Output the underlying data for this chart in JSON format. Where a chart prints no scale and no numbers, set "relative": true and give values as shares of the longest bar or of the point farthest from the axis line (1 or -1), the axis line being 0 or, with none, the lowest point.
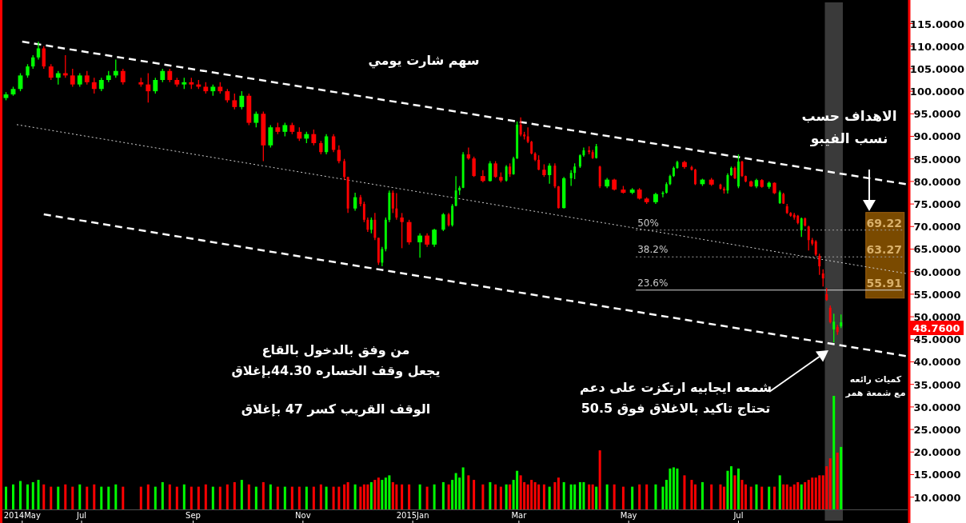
{
  "chart_data": [
    {
      "type": "candlestick",
      "title": "سهم شارت يومي",
      "x": [
        "2014-05-20",
        "2014-05-24",
        "2014-05-28",
        "2014-06-01",
        "2014-06-04",
        "2014-06-07",
        "2014-06-10",
        "2014-06-14",
        "2014-06-18",
        "2014-06-22",
        "2014-06-26",
        "2014-06-30",
        "2014-07-04",
        "2014-07-08",
        "2014-07-12",
        "2014-07-16",
        "2014-07-20",
        "2014-07-24",
        "2014-08-03",
        "2014-08-07",
        "2014-08-11",
        "2014-08-15",
        "2014-08-19",
        "2014-08-23",
        "2014-08-27",
        "2014-08-31",
        "2014-09-04",
        "2014-09-08",
        "2014-09-12",
        "2014-09-16",
        "2014-09-20",
        "2014-09-24",
        "2014-09-28",
        "2014-10-02",
        "2014-10-06",
        "2014-10-10",
        "2014-10-14",
        "2014-10-18",
        "2014-10-22",
        "2014-10-26",
        "2014-10-30",
        "2014-11-03",
        "2014-11-07",
        "2014-11-11",
        "2014-11-14",
        "2014-11-18",
        "2014-11-21",
        "2014-11-24",
        "2014-11-26",
        "2014-11-30",
        "2014-12-03",
        "2014-12-05",
        "2014-12-07",
        "2014-12-09",
        "2014-12-11",
        "2014-12-13",
        "2014-12-15",
        "2014-12-17",
        "2014-12-19",
        "2014-12-21",
        "2014-12-23",
        "2014-12-26",
        "2014-12-30",
        "2015-01-05",
        "2015-01-09",
        "2015-01-13",
        "2015-01-18",
        "2015-01-21",
        "2015-01-23",
        "2015-01-25",
        "2015-01-27",
        "2015-01-29",
        "2015-02-01",
        "2015-02-04",
        "2015-02-09",
        "2015-02-13",
        "2015-02-16",
        "2015-02-19",
        "2015-02-22",
        "2015-02-24",
        "2015-02-26",
        "2015-02-28",
        "2015-03-02",
        "2015-03-04",
        "2015-03-06",
        "2015-03-08",
        "2015-03-10",
        "2015-03-12",
        "2015-03-15",
        "2015-03-18",
        "2015-03-21",
        "2015-03-23",
        "2015-03-26",
        "2015-03-30",
        "2015-04-01",
        "2015-04-04",
        "2015-04-06",
        "2015-04-09",
        "2015-04-11",
        "2015-04-13",
        "2015-04-15",
        "2015-04-19",
        "2015-04-23",
        "2015-04-28",
        "2015-05-03",
        "2015-05-07",
        "2015-05-11",
        "2015-05-16",
        "2015-05-20",
        "2015-05-22",
        "2015-05-24",
        "2015-05-26",
        "2015-05-28",
        "2015-06-01",
        "2015-06-05",
        "2015-06-07",
        "2015-06-11",
        "2015-06-16",
        "2015-06-21",
        "2015-06-23",
        "2015-06-25",
        "2015-06-27",
        "2015-06-29",
        "2015-07-01",
        "2015-07-03",
        "2015-07-05",
        "2015-07-08",
        "2015-07-11",
        "2015-07-14",
        "2015-07-18",
        "2015-07-21",
        "2015-07-24",
        "2015-07-26",
        "2015-07-28",
        "2015-07-30",
        "2015-08-01",
        "2015-08-03",
        "2015-08-05",
        "2015-08-07",
        "2015-08-09",
        "2015-08-11",
        "2015-08-13",
        "2015-08-15",
        "2015-08-17",
        "2015-08-19",
        "2015-08-21",
        "2015-08-23",
        "2015-08-25",
        "2015-08-27"
      ],
      "ohlc": [
        [
          98.5,
          99.8,
          98,
          99.3
        ],
        [
          99.3,
          101,
          99,
          100.5
        ],
        [
          100.5,
          104,
          100,
          103.5
        ],
        [
          103.5,
          106,
          103,
          105.5
        ],
        [
          105.5,
          108,
          105,
          107.5
        ],
        [
          107.5,
          111,
          107,
          109.5
        ],
        [
          109.5,
          110,
          105,
          105.5
        ],
        [
          105.5,
          106,
          102.5,
          103
        ],
        [
          103,
          104.5,
          101.5,
          104
        ],
        [
          104,
          108,
          103,
          103.5
        ],
        [
          103.5,
          105,
          101,
          101.5
        ],
        [
          101.5,
          104,
          101,
          103.5
        ],
        [
          103.5,
          104.5,
          101.5,
          102
        ],
        [
          102,
          103,
          99.5,
          100.5
        ],
        [
          100.5,
          103,
          100,
          102.5
        ],
        [
          102.5,
          104.5,
          102,
          103.5
        ],
        [
          103.5,
          107,
          103,
          104.5
        ],
        [
          104.5,
          105,
          101.5,
          102
        ],
        [
          102,
          103,
          101,
          101.5
        ],
        [
          101.5,
          104,
          97.5,
          100
        ],
        [
          100,
          103,
          99.5,
          102.5
        ],
        [
          102.5,
          105,
          102,
          104.5
        ],
        [
          104.5,
          105,
          102,
          102.5
        ],
        [
          102.5,
          103,
          101,
          101.5
        ],
        [
          101.5,
          103,
          100.5,
          102
        ],
        [
          102,
          103,
          100.5,
          101.5
        ],
        [
          101.5,
          102.5,
          100.5,
          101
        ],
        [
          101,
          102,
          99.5,
          100
        ],
        [
          100,
          101.5,
          99,
          101
        ],
        [
          101,
          102,
          99.5,
          100
        ],
        [
          100,
          100.5,
          97.5,
          98
        ],
        [
          98,
          99.5,
          96,
          96.5
        ],
        [
          96.5,
          100,
          96,
          99
        ],
        [
          99,
          99.5,
          92.5,
          93
        ],
        [
          93,
          95.5,
          92,
          95
        ],
        [
          95,
          95.5,
          84.5,
          88
        ],
        [
          88,
          92.5,
          87.5,
          92
        ],
        [
          92,
          93,
          90.5,
          91
        ],
        [
          91,
          93,
          90,
          92.5
        ],
        [
          92.5,
          93,
          90.5,
          91
        ],
        [
          91,
          92,
          89,
          89.5
        ],
        [
          89.5,
          91,
          88.5,
          90.5
        ],
        [
          90.5,
          91.5,
          88,
          88.5
        ],
        [
          88.5,
          89,
          86,
          86.5
        ],
        [
          86.5,
          90.5,
          86,
          90
        ],
        [
          90,
          90.5,
          86.5,
          87
        ],
        [
          87,
          88,
          84,
          84.5
        ],
        [
          84.5,
          85,
          80.3,
          81
        ],
        [
          81,
          81,
          73,
          74
        ],
        [
          74,
          77.5,
          73.5,
          76.5
        ],
        [
          76.5,
          77,
          74.5,
          75
        ],
        [
          75,
          75.5,
          71,
          71.5
        ],
        [
          71.5,
          72,
          68.8,
          69.3
        ],
        [
          69.3,
          72,
          68.5,
          71.5
        ],
        [
          71.5,
          73,
          67,
          67.5
        ],
        [
          67.5,
          67.5,
          61.5,
          62
        ],
        [
          62,
          65.5,
          61.2,
          65
        ],
        [
          65,
          72,
          64.5,
          71.5
        ],
        [
          71.5,
          78,
          71,
          77.5
        ],
        [
          77.5,
          78,
          73,
          74
        ],
        [
          74,
          77.4,
          71.5,
          72
        ],
        [
          72,
          73,
          65.2,
          71
        ],
        [
          71,
          71.5,
          66,
          66.5
        ],
        [
          66.5,
          68.5,
          63.1,
          68
        ],
        [
          68,
          68.5,
          65.5,
          66
        ],
        [
          66,
          69.5,
          65.5,
          69.3
        ],
        [
          69.3,
          73,
          69,
          72.7
        ],
        [
          72.7,
          73,
          70,
          70.3
        ],
        [
          70.3,
          75,
          70,
          74.6
        ],
        [
          74.6,
          81.2,
          74.5,
          78
        ],
        [
          78,
          79,
          77,
          78.6
        ],
        [
          78.6,
          86.5,
          78.5,
          86
        ],
        [
          86,
          87.5,
          84.8,
          85.1
        ],
        [
          85.1,
          85.5,
          81,
          81.2
        ],
        [
          81.2,
          82.5,
          79.8,
          80.1
        ],
        [
          80.1,
          84.5,
          80,
          84
        ],
        [
          84,
          84.5,
          80.8,
          81
        ],
        [
          81,
          82,
          79.8,
          80.2
        ],
        [
          80.2,
          83.6,
          80,
          83.3
        ],
        [
          83.3,
          84,
          81,
          81.6
        ],
        [
          81.6,
          85.5,
          81.5,
          85.1
        ],
        [
          85.1,
          93.3,
          85,
          92.6
        ],
        [
          92.6,
          94.2,
          90,
          90.4
        ],
        [
          90.4,
          91,
          89.3,
          90
        ],
        [
          90,
          92,
          88.5,
          88.8
        ],
        [
          88.8,
          89,
          86,
          86.2
        ],
        [
          86.2,
          86.5,
          84.5,
          84.8
        ],
        [
          84.8,
          85.8,
          82.5,
          82.6
        ],
        [
          82.6,
          83.8,
          81,
          81.4
        ],
        [
          81.4,
          84,
          79.5,
          83.5
        ],
        [
          83.5,
          84,
          78.5,
          78.9
        ],
        [
          78.9,
          79,
          74,
          74.1
        ],
        [
          74.1,
          81,
          74,
          80.7
        ],
        [
          80.7,
          82.5,
          79,
          81.9
        ],
        [
          81.9,
          84,
          80.5,
          83.3
        ],
        [
          83.3,
          86,
          83,
          85.8
        ],
        [
          85.8,
          87.5,
          85.5,
          86.9
        ],
        [
          86.9,
          87.8,
          86,
          86.5
        ],
        [
          86.5,
          87,
          85,
          85.2
        ],
        [
          85.2,
          88.3,
          85.1,
          87.8
        ],
        [
          83.3,
          83.5,
          78.5,
          78.9
        ],
        [
          78.9,
          80.8,
          78.5,
          80.4
        ],
        [
          80.4,
          80.6,
          78,
          78.2
        ],
        [
          78.2,
          79,
          77.3,
          77.5
        ],
        [
          77.5,
          78.5,
          77.2,
          78.2
        ],
        [
          78.2,
          78.5,
          76,
          76.2
        ],
        [
          76.2,
          76.5,
          75,
          75.4
        ],
        [
          75.4,
          77.5,
          75,
          77.2
        ],
        [
          77.2,
          77.8,
          76.5,
          77.5
        ],
        [
          77.5,
          79.8,
          77.3,
          79.4
        ],
        [
          79.4,
          81.5,
          79.2,
          81.2
        ],
        [
          81.2,
          83.3,
          81,
          83
        ],
        [
          83,
          84.6,
          82.8,
          84.3
        ],
        [
          84.3,
          84.6,
          82.8,
          83.2
        ],
        [
          83.2,
          83.5,
          82.4,
          82.6
        ],
        [
          82.6,
          82.8,
          79.2,
          79.4
        ],
        [
          79.4,
          80.6,
          79,
          80.4
        ],
        [
          80.4,
          80.8,
          79,
          79.3
        ],
        [
          79.3,
          79.5,
          78.2,
          78.4
        ],
        [
          78.4,
          78.8,
          77.3,
          78
        ],
        [
          78,
          81.8,
          77.3,
          81.4
        ],
        [
          81.4,
          83.3,
          81.2,
          83
        ],
        [
          83,
          83.3,
          80.5,
          80.7
        ],
        [
          78.9,
          86,
          78.5,
          84.4
        ],
        [
          84.4,
          84.6,
          81,
          81.2
        ],
        [
          81.2,
          81.3,
          79.8,
          80
        ],
        [
          80,
          80.2,
          78.8,
          78.9
        ],
        [
          78.9,
          80.6,
          78.5,
          80.3
        ],
        [
          80.3,
          80.5,
          78.6,
          78.8
        ],
        [
          78.8,
          80,
          78.4,
          79.7
        ],
        [
          79.7,
          79.8,
          77.2,
          77.4
        ],
        [
          75.2,
          78,
          75,
          77.6
        ],
        [
          77.2,
          77.5,
          75,
          75.1
        ],
        [
          74.5,
          75,
          72.8,
          73
        ],
        [
          73,
          73.2,
          72.2,
          72.4
        ],
        [
          72.6,
          73,
          71.5,
          72
        ],
        [
          72.4,
          72.6,
          70.5,
          70.8
        ],
        [
          69.2,
          72,
          67.7,
          71.8
        ],
        [
          71.8,
          72,
          70,
          70.2
        ],
        [
          70,
          70.2,
          64.7,
          67
        ],
        [
          67,
          67.5,
          65.8,
          66.2
        ],
        [
          66.7,
          67,
          63.5,
          63.8
        ],
        [
          63.5,
          64,
          59.3,
          61.2
        ],
        [
          59.6,
          60.5,
          56.7,
          58.5
        ],
        [
          55,
          56.4,
          53.5,
          53.7
        ],
        [
          52,
          52.5,
          48.5,
          48.8
        ],
        [
          47.2,
          50.7,
          44.3,
          48.9
        ],
        [
          47.7,
          48.2,
          46,
          46.6
        ],
        [
          47.9,
          50.5,
          47.5,
          48.76
        ]
      ],
      "colors": [
        "#00ff00",
        "#00ff00",
        "#00ff00",
        "#00ff00",
        "#00ff00",
        "#00ff00",
        "#ff0000",
        "#ff0000",
        "#00ff00",
        "#ff0000",
        "#ff0000",
        "#00ff00",
        "#ff0000",
        "#ff0000",
        "#00ff00",
        "#00ff00",
        "#00ff00",
        "#ff0000",
        "#ff0000",
        "#ff0000",
        "#00ff00",
        "#00ff00",
        "#ff0000",
        "#ff0000",
        "#00ff00",
        "#ff0000",
        "#ff0000",
        "#ff0000",
        "#00ff00",
        "#ff0000",
        "#ff0000",
        "#ff0000",
        "#00ff00",
        "#ff0000",
        "#00ff00",
        "#ff0000",
        "#00ff00",
        "#ff0000",
        "#00ff00",
        "#ff0000",
        "#ff0000",
        "#00ff00",
        "#ff0000",
        "#ff0000",
        "#00ff00",
        "#ff0000",
        "#ff0000",
        "#ff0000",
        "#ff0000",
        "#00ff00",
        "#ff0000",
        "#ff0000",
        "#ff0000",
        "#00ff00",
        "#ff0000",
        "#ff0000",
        "#00ff00",
        "#00ff00",
        "#00ff00",
        "#ff0000",
        "#ff0000",
        "#ff0000",
        "#ff0000",
        "#00ff00",
        "#ff0000",
        "#00ff00",
        "#00ff00",
        "#ff0000",
        "#00ff00",
        "#00ff00",
        "#00ff00",
        "#00ff00",
        "#ff0000",
        "#ff0000",
        "#ff0000",
        "#00ff00",
        "#ff0000",
        "#ff0000",
        "#00ff00",
        "#ff0000",
        "#00ff00",
        "#00ff00",
        "#ff0000",
        "#ff0000",
        "#ff0000",
        "#ff0000",
        "#ff0000",
        "#ff0000",
        "#ff0000",
        "#00ff00",
        "#ff0000",
        "#ff0000",
        "#00ff00",
        "#00ff00",
        "#00ff00",
        "#00ff00",
        "#00ff00",
        "#ff0000",
        "#ff0000",
        "#00ff00",
        "#ff0000",
        "#00ff00",
        "#ff0000",
        "#ff0000",
        "#00ff00",
        "#ff0000",
        "#ff0000",
        "#00ff00",
        "#00ff00",
        "#00ff00",
        "#00ff00",
        "#00ff00",
        "#00ff00",
        "#ff0000",
        "#ff0000",
        "#ff0000",
        "#00ff00",
        "#ff0000",
        "#ff0000",
        "#ff0000",
        "#00ff00",
        "#00ff00",
        "#ff0000",
        "#00ff00",
        "#ff0000",
        "#ff0000",
        "#ff0000",
        "#00ff00",
        "#ff0000",
        "#00ff00",
        "#ff0000",
        "#00ff00",
        "#ff0000",
        "#ff0000",
        "#ff0000",
        "#ff0000",
        "#ff0000",
        "#00ff00",
        "#ff0000",
        "#ff0000",
        "#ff0000",
        "#ff0000",
        "#ff0000",
        "#ff0000",
        "#ff0000",
        "#ff0000",
        "#00ff00",
        "#ff0000",
        "#00ff00"
      ],
      "series": [
        {
          "type": "line",
          "color": "#ffffff",
          "line_style": "dashed",
          "x": [
            "2014-05-29",
            "2015-10-02"
          ],
          "values": [
            111,
            79.4
          ]
        },
        {
          "type": "line",
          "color": "#d0d0d0",
          "line_style": "dotted",
          "x": [
            "2014-05-26",
            "2015-10-02"
          ],
          "values": [
            92.6,
            59.6
          ]
        },
        {
          "type": "line",
          "color": "#ffffff",
          "line_style": "dashed",
          "x": [
            "2014-06-10",
            "2015-10-02"
          ],
          "values": [
            72.7,
            41.3
          ]
        },
        {
          "type": "line",
          "name": "50%",
          "color": "#a0a0a0",
          "line_style": "dotted",
          "x": [
            "2015-05-05",
            "2015-09-30"
          ],
          "values": [
            69.22,
            69.22
          ]
        },
        {
          "type": "line",
          "name": "38.2%",
          "color": "#a0a0a0",
          "line_style": "dotted",
          "x": [
            "2015-05-05",
            "2015-09-30"
          ],
          "values": [
            63.27,
            63.27
          ]
        },
        {
          "type": "line",
          "name": "23.6%",
          "color": "#d8d8d8",
          "line_style": "solid",
          "x": [
            "2015-05-05",
            "2015-09-30"
          ],
          "values": [
            55.91,
            55.91
          ]
        }
      ],
      "bands": [
        {
          "axis": "x",
          "from": "2015-08-18",
          "to": "2015-08-28",
          "color": "#808080"
        }
      ],
      "annotations": [
        "الاهداف حسب\nنسب الفيبو",
        "من وفق بالدخول بالقاع\nيجعل وقف الخساره 44.30بإغلاق",
        "الوقف القريب كسر 47 بإغلاق",
        "شمعه ايجابيه ارتكزت على دعم\nتحتاج تاكيد بالاغلاق فوق 50.5",
        "كميات رائعه\nمع شمعة همر",
        {
          "text": "69.22",
          "x": "2015-09-20",
          "y": 69.22
        },
        {
          "text": "63.27",
          "x": "2015-09-20",
          "y": 63.27
        },
        {
          "text": "55.91",
          "x": "2015-09-20",
          "y": 55.91
        },
        "48.7600"
      ],
      "xlim": [
        "2014-05-18",
        "2015-10-03"
      ],
      "xticks": [
        {
          "value": "2014-05-29",
          "label": "2014May"
        },
        {
          "value": "2014-07-01",
          "label": "Jul"
        },
        {
          "value": "2014-09-01",
          "label": "Sep"
        },
        {
          "value": "2014-11-01",
          "label": "Nov"
        },
        {
          "value": "2015-01-01",
          "label": "2015Jan"
        },
        {
          "value": "2015-03-01",
          "label": "Mar"
        },
        {
          "value": "2015-05-01",
          "label": "May"
        },
        {
          "value": "2015-07-01",
          "label": "Jul"
        }
      ],
      "ylim": [
        4.8,
        119.7
      ],
      "yticks": [
        {
          "value": 10,
          "label": "10.0000"
        },
        {
          "value": 15,
          "label": "15.0000"
        },
        {
          "value": 20,
          "label": "20.0000"
        },
        {
          "value": 25,
          "label": "25.0000"
        },
        {
          "value": 30,
          "label": "30.0000"
        },
        {
          "value": 35,
          "label": "35.0000"
        },
        {
          "value": 40,
          "label": "40.0000"
        },
        {
          "value": 45,
          "label": "45.0000"
        },
        {
          "value": 50,
          "label": "50.0000"
        },
        {
          "value": 55,
          "label": "55.0000"
        },
        {
          "value": 60,
          "label": "60.0000"
        },
        {
          "value": 65,
          "label": "65.0000"
        },
        {
          "value": 70,
          "label": "70.0000"
        },
        {
          "value": 75,
          "label": "75.0000"
        },
        {
          "value": 80,
          "label": "80.0000"
        },
        {
          "value": 85,
          "label": "85.0000"
        },
        {
          "value": 90,
          "label": "90.0000"
        },
        {
          "value": 95,
          "label": "95.0000"
        },
        {
          "value": 100,
          "label": "100.0000"
        },
        {
          "value": 105,
          "label": "105.0000"
        },
        {
          "value": 110,
          "label": "110.0000"
        },
        {
          "value": 115,
          "label": "115.0000"
        }
      ]
    },
    {
      "type": "bar",
      "relative": true,
      "xlim": [
        "2014-05-18",
        "2015-10-03"
      ],
      "x": [
        "2014-05-20",
        "2014-05-24",
        "2014-05-28",
        "2014-06-01",
        "2014-06-04",
        "2014-06-07",
        "2014-06-10",
        "2014-06-14",
        "2014-06-18",
        "2014-06-22",
        "2014-06-26",
        "2014-06-30",
        "2014-07-04",
        "2014-07-08",
        "2014-07-12",
        "2014-07-16",
        "2014-07-20",
        "2014-07-24",
        "2014-08-03",
        "2014-08-07",
        "2014-08-11",
        "2014-08-15",
        "2014-08-19",
        "2014-08-23",
        "2014-08-27",
        "2014-08-31",
        "2014-09-04",
        "2014-09-08",
        "2014-09-12",
        "2014-09-16",
        "2014-09-20",
        "2014-09-24",
        "2014-09-28",
        "2014-10-02",
        "2014-10-06",
        "2014-10-10",
        "2014-10-14",
        "2014-10-18",
        "2014-10-22",
        "2014-10-26",
        "2014-10-30",
        "2014-11-03",
        "2014-11-07",
        "2014-11-11",
        "2014-11-14",
        "2014-11-18",
        "2014-11-21",
        "2014-11-24",
        "2014-11-26",
        "2014-11-30",
        "2014-12-03",
        "2014-12-05",
        "2014-12-07",
        "2014-12-09",
        "2014-12-11",
        "2014-12-13",
        "2014-12-15",
        "2014-12-17",
        "2014-12-19",
        "2014-12-21",
        "2014-12-23",
        "2014-12-26",
        "2014-12-30",
        "2015-01-05",
        "2015-01-09",
        "2015-01-13",
        "2015-01-18",
        "2015-01-21",
        "2015-01-23",
        "2015-01-25",
        "2015-01-27",
        "2015-01-29",
        "2015-02-01",
        "2015-02-04",
        "2015-02-09",
        "2015-02-13",
        "2015-02-16",
        "2015-02-19",
        "2015-02-22",
        "2015-02-24",
        "2015-02-26",
        "2015-02-28",
        "2015-03-02",
        "2015-03-04",
        "2015-03-06",
        "2015-03-08",
        "2015-03-10",
        "2015-03-12",
        "2015-03-15",
        "2015-03-18",
        "2015-03-21",
        "2015-03-23",
        "2015-03-26",
        "2015-03-30",
        "2015-04-01",
        "2015-04-04",
        "2015-04-06",
        "2015-04-09",
        "2015-04-11",
        "2015-04-13",
        "2015-04-15",
        "2015-04-19",
        "2015-04-23",
        "2015-04-28",
        "2015-05-03",
        "2015-05-07",
        "2015-05-11",
        "2015-05-16",
        "2015-05-20",
        "2015-05-22",
        "2015-05-24",
        "2015-05-26",
        "2015-05-28",
        "2015-06-01",
        "2015-06-05",
        "2015-06-07",
        "2015-06-11",
        "2015-06-16",
        "2015-06-21",
        "2015-06-23",
        "2015-06-25",
        "2015-06-27",
        "2015-06-29",
        "2015-07-01",
        "2015-07-03",
        "2015-07-05",
        "2015-07-08",
        "2015-07-11",
        "2015-07-14",
        "2015-07-18",
        "2015-07-21",
        "2015-07-24",
        "2015-07-26",
        "2015-07-28",
        "2015-07-30",
        "2015-08-01",
        "2015-08-03",
        "2015-08-05",
        "2015-08-07",
        "2015-08-09",
        "2015-08-11",
        "2015-08-13",
        "2015-08-15",
        "2015-08-17",
        "2015-08-19",
        "2015-08-21",
        "2015-08-23",
        "2015-08-25",
        "2015-08-27"
      ],
      "values": [
        0.2,
        0.22,
        0.25,
        0.22,
        0.24,
        0.26,
        0.22,
        0.2,
        0.2,
        0.22,
        0.2,
        0.22,
        0.2,
        0.22,
        0.2,
        0.2,
        0.22,
        0.2,
        0.2,
        0.22,
        0.2,
        0.24,
        0.22,
        0.2,
        0.22,
        0.2,
        0.2,
        0.22,
        0.2,
        0.2,
        0.22,
        0.24,
        0.26,
        0.22,
        0.2,
        0.24,
        0.22,
        0.2,
        0.2,
        0.2,
        0.2,
        0.2,
        0.2,
        0.22,
        0.2,
        0.2,
        0.2,
        0.22,
        0.24,
        0.22,
        0.2,
        0.22,
        0.22,
        0.24,
        0.26,
        0.28,
        0.26,
        0.28,
        0.3,
        0.24,
        0.22,
        0.22,
        0.22,
        0.22,
        0.2,
        0.22,
        0.24,
        0.22,
        0.26,
        0.32,
        0.28,
        0.37,
        0.3,
        0.26,
        0.22,
        0.24,
        0.22,
        0.2,
        0.22,
        0.22,
        0.26,
        0.34,
        0.3,
        0.24,
        0.22,
        0.26,
        0.24,
        0.22,
        0.22,
        0.2,
        0.24,
        0.28,
        0.24,
        0.22,
        0.22,
        0.24,
        0.24,
        0.22,
        0.22,
        0.2,
        0.52,
        0.22,
        0.22,
        0.2,
        0.2,
        0.22,
        0.22,
        0.22,
        0.2,
        0.26,
        0.36,
        0.37,
        0.36,
        0.3,
        0.26,
        0.22,
        0.24,
        0.22,
        0.22,
        0.2,
        0.34,
        0.38,
        0.3,
        0.36,
        0.26,
        0.22,
        0.2,
        0.22,
        0.2,
        0.2,
        0.2,
        0.3,
        0.22,
        0.22,
        0.2,
        0.22,
        0.24,
        0.22,
        0.24,
        0.26,
        0.28,
        0.28,
        0.3,
        0.3,
        0.38,
        0.45,
        1,
        0.5,
        0.55
      ],
      "colors": [
        "#00ff00",
        "#00ff00",
        "#00ff00",
        "#00ff00",
        "#00ff00",
        "#00ff00",
        "#ff0000",
        "#ff0000",
        "#00ff00",
        "#ff0000",
        "#ff0000",
        "#00ff00",
        "#ff0000",
        "#ff0000",
        "#00ff00",
        "#00ff00",
        "#00ff00",
        "#ff0000",
        "#ff0000",
        "#ff0000",
        "#00ff00",
        "#00ff00",
        "#ff0000",
        "#ff0000",
        "#00ff00",
        "#ff0000",
        "#ff0000",
        "#ff0000",
        "#00ff00",
        "#ff0000",
        "#ff0000",
        "#ff0000",
        "#00ff00",
        "#ff0000",
        "#00ff00",
        "#ff0000",
        "#00ff00",
        "#ff0000",
        "#00ff00",
        "#ff0000",
        "#ff0000",
        "#00ff00",
        "#ff0000",
        "#ff0000",
        "#00ff00",
        "#ff0000",
        "#ff0000",
        "#ff0000",
        "#ff0000",
        "#00ff00",
        "#ff0000",
        "#ff0000",
        "#ff0000",
        "#00ff00",
        "#ff0000",
        "#ff0000",
        "#00ff00",
        "#00ff00",
        "#00ff00",
        "#ff0000",
        "#ff0000",
        "#ff0000",
        "#ff0000",
        "#00ff00",
        "#ff0000",
        "#00ff00",
        "#00ff00",
        "#ff0000",
        "#00ff00",
        "#00ff00",
        "#00ff00",
        "#00ff00",
        "#ff0000",
        "#ff0000",
        "#ff0000",
        "#00ff00",
        "#ff0000",
        "#ff0000",
        "#00ff00",
        "#ff0000",
        "#00ff00",
        "#00ff00",
        "#ff0000",
        "#ff0000",
        "#ff0000",
        "#ff0000",
        "#ff0000",
        "#ff0000",
        "#ff0000",
        "#00ff00",
        "#ff0000",
        "#ff0000",
        "#00ff00",
        "#00ff00",
        "#00ff00",
        "#00ff00",
        "#00ff00",
        "#ff0000",
        "#ff0000",
        "#00ff00",
        "#ff0000",
        "#00ff00",
        "#ff0000",
        "#ff0000",
        "#00ff00",
        "#ff0000",
        "#ff0000",
        "#00ff00",
        "#00ff00",
        "#00ff00",
        "#00ff00",
        "#00ff00",
        "#00ff00",
        "#ff0000",
        "#ff0000",
        "#ff0000",
        "#00ff00",
        "#ff0000",
        "#ff0000",
        "#ff0000",
        "#00ff00",
        "#00ff00",
        "#ff0000",
        "#00ff00",
        "#ff0000",
        "#ff0000",
        "#ff0000",
        "#00ff00",
        "#ff0000",
        "#00ff00",
        "#ff0000",
        "#00ff00",
        "#ff0000",
        "#ff0000",
        "#ff0000",
        "#ff0000",
        "#ff0000",
        "#00ff00",
        "#ff0000",
        "#ff0000",
        "#ff0000",
        "#ff0000",
        "#ff0000",
        "#ff0000",
        "#ff0000",
        "#ff0000",
        "#00ff00",
        "#ff0000",
        "#00ff00"
      ]
    }
  ]
}
